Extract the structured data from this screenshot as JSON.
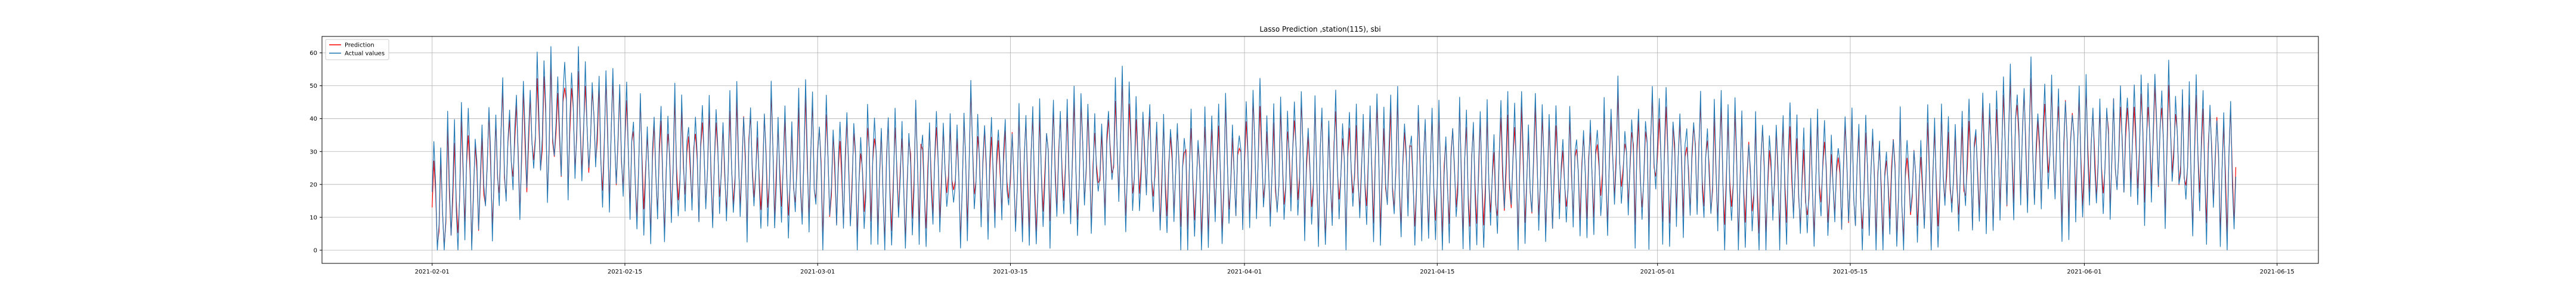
{
  "chart_data": {
    "type": "line",
    "title": "Lasso Prediction ,station(115), sbi",
    "xlabel": "",
    "ylabel": "",
    "x_range": [
      "2021-01-24",
      "2021-06-18"
    ],
    "ylim": [
      -4,
      65
    ],
    "x_tick_labels": [
      "2021-02-01",
      "2021-02-15",
      "2021-03-01",
      "2021-03-15",
      "2021-04-01",
      "2021-04-15",
      "2021-05-01",
      "2021-05-15",
      "2021-06-01",
      "2021-06-15"
    ],
    "y_ticks": [
      0,
      10,
      20,
      30,
      40,
      50,
      60
    ],
    "grid": true,
    "legend_position": "top-left",
    "series": [
      {
        "name": "Prediction",
        "color": "#ff0000",
        "x": [
          "2021-02-01",
          "2021-02-06",
          "2021-02-11",
          "2021-02-16",
          "2021-02-21",
          "2021-02-26",
          "2021-03-03",
          "2021-03-08",
          "2021-03-13",
          "2021-03-18",
          "2021-03-23",
          "2021-03-28",
          "2021-04-02",
          "2021-04-07",
          "2021-04-12",
          "2021-04-17",
          "2021-04-22",
          "2021-04-27",
          "2021-05-02",
          "2021-05-07",
          "2021-05-12",
          "2021-05-17",
          "2021-05-22",
          "2021-05-27",
          "2021-06-01",
          "2021-06-06",
          "2021-06-11"
        ],
        "values": [
          12,
          28,
          40,
          26,
          27,
          26,
          22,
          24,
          25,
          24,
          30,
          22,
          26,
          25,
          24,
          22,
          22,
          26,
          27,
          22,
          22,
          20,
          22,
          32,
          30,
          32,
          26
        ]
      },
      {
        "name": "Actual values",
        "color": "#1f77b4",
        "x": [
          "2021-02-01",
          "2021-02-06",
          "2021-02-11",
          "2021-02-16",
          "2021-02-21",
          "2021-02-26",
          "2021-03-03",
          "2021-03-08",
          "2021-03-13",
          "2021-03-18",
          "2021-03-23",
          "2021-03-28",
          "2021-04-02",
          "2021-04-07",
          "2021-04-12",
          "2021-04-17",
          "2021-04-22",
          "2021-04-27",
          "2021-05-02",
          "2021-05-07",
          "2021-05-12",
          "2021-05-17",
          "2021-05-22",
          "2021-05-27",
          "2021-06-01",
          "2021-06-06",
          "2021-06-11"
        ],
        "values": [
          13,
          29,
          42,
          25,
          28,
          25,
          23,
          23,
          26,
          23,
          31,
          21,
          27,
          24,
          25,
          21,
          23,
          25,
          28,
          21,
          23,
          19,
          23,
          33,
          29,
          33,
          25
        ],
        "y_min_observed": 0,
        "y_max_observed": 62
      }
    ]
  }
}
